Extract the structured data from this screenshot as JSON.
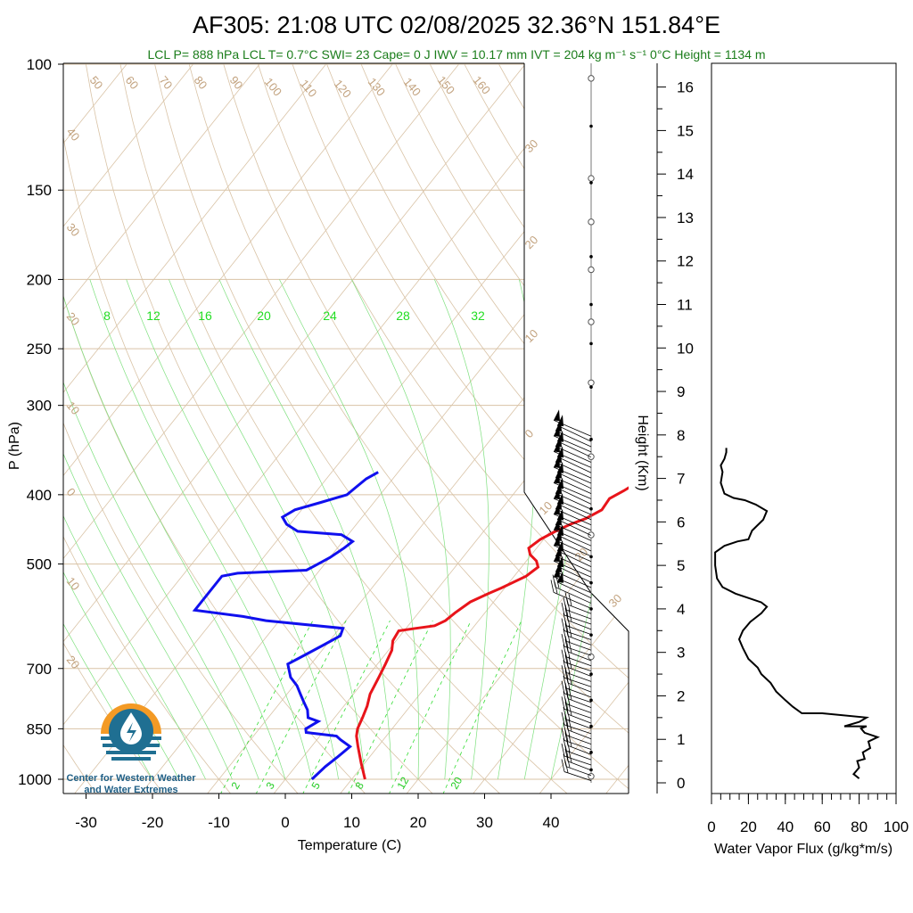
{
  "title": "AF305: 21:08 UTC 02/08/2025  32.36°N 151.84°E",
  "subtitle": "LCL P= 888 hPa  LCL T= 0.7°C  SWI= 23  Cape= 0 J  IWV = 10.17 mm  IVT = 204 kg m⁻¹ s⁻¹  0°C Height = 1134 m",
  "logo": {
    "line1": "Center for Western Weather",
    "line2": "and Water Extremes"
  },
  "colors": {
    "temperature": "#e8141a",
    "dewpoint": "#1010ee",
    "grid": "#d9c3a6",
    "mixing_ratio": "#22dd22",
    "flux": "#000000"
  },
  "chart_data": [
    {
      "type": "line",
      "name": "skew-t",
      "xlabel": "Temperature (C)",
      "ylabel": "P (hPa)",
      "x_ticks": [
        "-30",
        "-20",
        "-10",
        "0",
        "10",
        "20",
        "30",
        "40"
      ],
      "y_ticks": [
        "100",
        "150",
        "200",
        "250",
        "300",
        "400",
        "500",
        "700",
        "850",
        "1000"
      ],
      "xlim": [
        -34,
        50
      ],
      "ylim": [
        1050,
        100
      ],
      "log_pressure": true,
      "dry_adiabat_labels": [
        "50",
        "60",
        "70",
        "80",
        "90",
        "100",
        "110",
        "120",
        "130",
        "140",
        "150",
        "160"
      ],
      "adiabat_side_labels": [
        "40",
        "30",
        "20",
        "10",
        "0",
        "10",
        "20"
      ],
      "moist_adiabat_labels": [
        "30",
        "20",
        "10",
        "0",
        "10",
        "20",
        "30"
      ],
      "mixing_ratio_labels": [
        "8",
        "12",
        "16",
        "20",
        "24",
        "28",
        "32"
      ],
      "mixing_ratio_low_labels": [
        "2",
        "3",
        "5",
        "8",
        "12",
        "20"
      ],
      "series": [
        {
          "key": "temperature",
          "points": [
            [
              12,
              1000
            ],
            [
              9.5,
              950
            ],
            [
              7,
              900
            ],
            [
              5.5,
              870
            ],
            [
              4.8,
              850
            ],
            [
              4.2,
              820
            ],
            [
              3.5,
              790
            ],
            [
              2.5,
              760
            ],
            [
              1.8,
              720
            ],
            [
              1.2,
              690
            ],
            [
              0.5,
              660
            ],
            [
              -0.5,
              640
            ],
            [
              -0.8,
              620
            ],
            [
              1.5,
              615
            ],
            [
              4,
              610
            ],
            [
              5,
              600
            ],
            [
              5.5,
              585
            ],
            [
              6.5,
              565
            ],
            [
              8.2,
              550
            ],
            [
              9.5,
              540
            ],
            [
              11.8,
              520
            ],
            [
              12.5,
              505
            ],
            [
              11.5,
              495
            ],
            [
              9.8,
              485
            ],
            [
              8.8,
              475
            ],
            [
              9.5,
              462
            ],
            [
              10.8,
              450
            ],
            [
              12.2,
              440
            ],
            [
              13.8,
              432
            ],
            [
              15.2,
              420
            ],
            [
              15,
              405
            ],
            [
              16.2,
              395
            ],
            [
              17.2,
              385
            ],
            [
              16.8,
              378
            ]
          ]
        },
        {
          "key": "dewpoint",
          "points": [
            [
              4,
              1000
            ],
            [
              4.5,
              960
            ],
            [
              5.2,
              930
            ],
            [
              5.8,
              900
            ],
            [
              3.5,
              880
            ],
            [
              2.5,
              870
            ],
            [
              -2.5,
              860
            ],
            [
              -3,
              850
            ],
            [
              -2,
              830
            ],
            [
              -4,
              820
            ],
            [
              -5,
              800
            ],
            [
              -6.5,
              780
            ],
            [
              -8,
              760
            ],
            [
              -9.5,
              740
            ],
            [
              -11.5,
              720
            ],
            [
              -13.5,
              690
            ],
            [
              -12,
              670
            ],
            [
              -10.5,
              650
            ],
            [
              -9,
              630
            ],
            [
              -9.5,
              615
            ],
            [
              -22,
              600
            ],
            [
              -26,
              592
            ],
            [
              -34,
              580
            ],
            [
              -34,
              520
            ],
            [
              -32,
              515
            ],
            [
              -22,
              510
            ],
            [
              -21,
              500
            ],
            [
              -20,
              490
            ],
            [
              -19,
              475
            ],
            [
              -18.5,
              465
            ],
            [
              -21,
              455
            ],
            [
              -28,
              450
            ],
            [
              -30.5,
              440
            ],
            [
              -32,
              430
            ],
            [
              -31,
              420
            ],
            [
              -28,
              410
            ],
            [
              -25,
              400
            ],
            [
              -24.5,
              390
            ],
            [
              -24,
              380
            ],
            [
              -23,
              372
            ]
          ]
        }
      ],
      "wind_barb_height_range_km": [
        0,
        8
      ]
    },
    {
      "type": "line",
      "name": "water-vapor-flux",
      "xlabel": "Water Vapor Flux (g/kg*m/s)",
      "ylabel": "Height (Km)",
      "x_ticks": [
        "0",
        "20",
        "40",
        "60",
        "80",
        "100"
      ],
      "y_ticks": [
        "0",
        "1",
        "2",
        "3",
        "4",
        "5",
        "6",
        "7",
        "8",
        "9",
        "10",
        "11",
        "12",
        "13",
        "14",
        "15",
        "16"
      ],
      "xlim": [
        0,
        100
      ],
      "ylim": [
        0,
        16.3
      ],
      "series": [
        {
          "key": "flux",
          "points": [
            [
              80,
              0.1
            ],
            [
              77,
              0.2
            ],
            [
              80,
              0.35
            ],
            [
              79,
              0.5
            ],
            [
              83,
              0.55
            ],
            [
              82,
              0.7
            ],
            [
              86,
              0.8
            ],
            [
              85,
              0.95
            ],
            [
              90,
              1.05
            ],
            [
              83,
              1.15
            ],
            [
              81,
              1.25
            ],
            [
              84,
              1.3
            ],
            [
              72,
              1.3
            ],
            [
              80,
              1.4
            ],
            [
              84,
              1.5
            ],
            [
              60,
              1.6
            ],
            [
              49,
              1.6
            ],
            [
              44,
              1.75
            ],
            [
              40,
              1.9
            ],
            [
              35,
              2.1
            ],
            [
              32,
              2.3
            ],
            [
              27,
              2.5
            ],
            [
              25,
              2.65
            ],
            [
              20,
              2.85
            ],
            [
              17,
              3.1
            ],
            [
              15,
              3.3
            ],
            [
              17,
              3.5
            ],
            [
              21,
              3.7
            ],
            [
              27,
              3.9
            ],
            [
              30,
              4.05
            ],
            [
              27,
              4.15
            ],
            [
              20,
              4.25
            ],
            [
              13,
              4.35
            ],
            [
              6,
              4.5
            ],
            [
              3,
              4.7
            ],
            [
              2,
              5.0
            ],
            [
              2,
              5.3
            ],
            [
              7,
              5.45
            ],
            [
              14,
              5.55
            ],
            [
              20,
              5.6
            ],
            [
              22,
              5.8
            ],
            [
              28,
              6.05
            ],
            [
              30,
              6.25
            ],
            [
              24,
              6.4
            ],
            [
              18,
              6.5
            ],
            [
              12,
              6.55
            ],
            [
              7,
              6.65
            ],
            [
              5,
              6.9
            ],
            [
              6,
              7.15
            ],
            [
              5,
              7.3
            ],
            [
              7,
              7.45
            ],
            [
              8,
              7.6
            ],
            [
              8,
              7.7
            ]
          ]
        }
      ]
    }
  ]
}
